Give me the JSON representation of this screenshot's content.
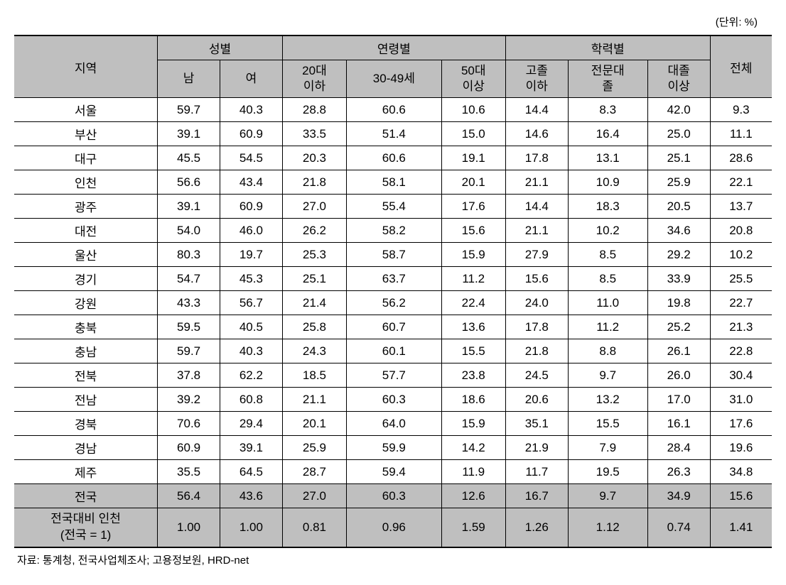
{
  "unit_label": "(단위: %)",
  "headers": {
    "region": "지역",
    "group_gender": "성별",
    "group_age": "연령별",
    "group_edu": "학력별",
    "total": "전체",
    "male": "남",
    "female": "여",
    "age20": "20대\n이하",
    "age3049": "30-49세",
    "age50": "50대\n이상",
    "eduHS": "고졸\n이하",
    "eduJC": "전문대\n졸",
    "eduUni": "대졸\n이상"
  },
  "rows": [
    {
      "region": "서울",
      "vals": [
        "59.7",
        "40.3",
        "28.8",
        "60.6",
        "10.6",
        "14.4",
        "8.3",
        "42.0",
        "9.3"
      ]
    },
    {
      "region": "부산",
      "vals": [
        "39.1",
        "60.9",
        "33.5",
        "51.4",
        "15.0",
        "14.6",
        "16.4",
        "25.0",
        "11.1"
      ]
    },
    {
      "region": "대구",
      "vals": [
        "45.5",
        "54.5",
        "20.3",
        "60.6",
        "19.1",
        "17.8",
        "13.1",
        "25.1",
        "28.6"
      ]
    },
    {
      "region": "인천",
      "vals": [
        "56.6",
        "43.4",
        "21.8",
        "58.1",
        "20.1",
        "21.1",
        "10.9",
        "25.9",
        "22.1"
      ]
    },
    {
      "region": "광주",
      "vals": [
        "39.1",
        "60.9",
        "27.0",
        "55.4",
        "17.6",
        "14.4",
        "18.3",
        "20.5",
        "13.7"
      ]
    },
    {
      "region": "대전",
      "vals": [
        "54.0",
        "46.0",
        "26.2",
        "58.2",
        "15.6",
        "21.1",
        "10.2",
        "34.6",
        "20.8"
      ]
    },
    {
      "region": "울산",
      "vals": [
        "80.3",
        "19.7",
        "25.3",
        "58.7",
        "15.9",
        "27.9",
        "8.5",
        "29.2",
        "10.2"
      ]
    },
    {
      "region": "경기",
      "vals": [
        "54.7",
        "45.3",
        "25.1",
        "63.7",
        "11.2",
        "15.6",
        "8.5",
        "33.9",
        "25.5"
      ]
    },
    {
      "region": "강원",
      "vals": [
        "43.3",
        "56.7",
        "21.4",
        "56.2",
        "22.4",
        "24.0",
        "11.0",
        "19.8",
        "22.7"
      ]
    },
    {
      "region": "충북",
      "vals": [
        "59.5",
        "40.5",
        "25.8",
        "60.7",
        "13.6",
        "17.8",
        "11.2",
        "25.2",
        "21.3"
      ]
    },
    {
      "region": "충남",
      "vals": [
        "59.7",
        "40.3",
        "24.3",
        "60.1",
        "15.5",
        "21.8",
        "8.8",
        "26.1",
        "22.8"
      ]
    },
    {
      "region": "전북",
      "vals": [
        "37.8",
        "62.2",
        "18.5",
        "57.7",
        "23.8",
        "24.5",
        "9.7",
        "26.0",
        "30.4"
      ]
    },
    {
      "region": "전남",
      "vals": [
        "39.2",
        "60.8",
        "21.1",
        "60.3",
        "18.6",
        "20.6",
        "13.2",
        "17.0",
        "31.0"
      ]
    },
    {
      "region": "경북",
      "vals": [
        "70.6",
        "29.4",
        "20.1",
        "64.0",
        "15.9",
        "35.1",
        "15.5",
        "16.1",
        "17.6"
      ]
    },
    {
      "region": "경남",
      "vals": [
        "60.9",
        "39.1",
        "25.9",
        "59.9",
        "14.2",
        "21.9",
        "7.9",
        "28.4",
        "19.6"
      ]
    },
    {
      "region": "제주",
      "vals": [
        "35.5",
        "64.5",
        "28.7",
        "59.4",
        "11.9",
        "11.7",
        "19.5",
        "26.3",
        "34.8"
      ]
    }
  ],
  "national_row": {
    "region": "전국",
    "vals": [
      "56.4",
      "43.6",
      "27.0",
      "60.3",
      "12.6",
      "16.7",
      "9.7",
      "34.9",
      "15.6"
    ]
  },
  "ratio_row": {
    "region": "전국대비 인천\n(전국 = 1)",
    "vals": [
      "1.00",
      "1.00",
      "0.81",
      "0.96",
      "1.59",
      "1.26",
      "1.12",
      "0.74",
      "1.41"
    ]
  },
  "source": "자료: 통계청, 전국사업체조사; 고용정보원, HRD-net",
  "style": {
    "header_bg": "#bfbfbf",
    "highlight_bg": "#bfbfbf",
    "border_color": "#000000",
    "font_size_body": 17,
    "font_size_note": 15
  }
}
